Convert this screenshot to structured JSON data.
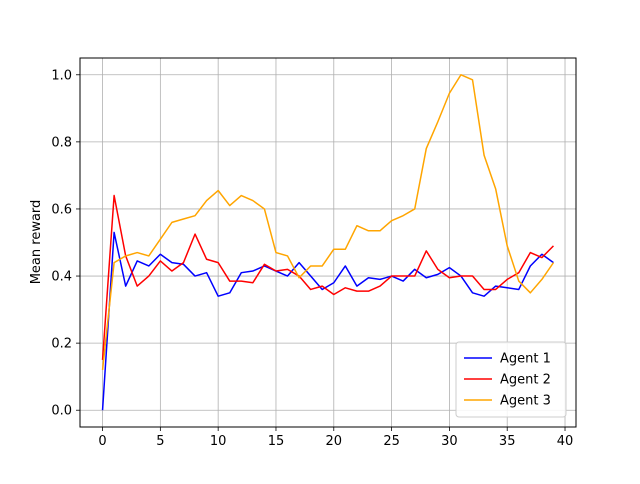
{
  "chart_data": {
    "type": "line",
    "title": "",
    "xlabel": "",
    "ylabel": "Mean reward",
    "xlim": [
      -1.95,
      40.95
    ],
    "ylim": [
      -0.05,
      1.05
    ],
    "xticks": [
      0,
      5,
      10,
      15,
      20,
      25,
      30,
      35,
      40
    ],
    "yticks": [
      0.0,
      0.2,
      0.4,
      0.6,
      0.8,
      1.0
    ],
    "xtick_labels": [
      "0",
      "5",
      "10",
      "15",
      "20",
      "25",
      "30",
      "35",
      "40"
    ],
    "ytick_labels": [
      "0.0",
      "0.2",
      "0.4",
      "0.6",
      "0.8",
      "1.0"
    ],
    "grid": true,
    "legend_position": "bottom-right",
    "x": [
      0,
      1,
      2,
      3,
      4,
      5,
      6,
      7,
      8,
      9,
      10,
      11,
      12,
      13,
      14,
      15,
      16,
      17,
      18,
      19,
      20,
      21,
      22,
      23,
      24,
      25,
      26,
      27,
      28,
      29,
      30,
      31,
      32,
      33,
      34,
      35,
      36,
      37,
      38,
      39
    ],
    "series": [
      {
        "name": "Agent 1",
        "color": "#0000ff",
        "values": [
          0.0,
          0.53,
          0.37,
          0.445,
          0.43,
          0.465,
          0.44,
          0.435,
          0.4,
          0.41,
          0.34,
          0.35,
          0.41,
          0.415,
          0.43,
          0.415,
          0.4,
          0.44,
          0.4,
          0.36,
          0.38,
          0.43,
          0.37,
          0.395,
          0.39,
          0.4,
          0.385,
          0.42,
          0.395,
          0.405,
          0.425,
          0.4,
          0.35,
          0.34,
          0.37,
          0.365,
          0.36,
          0.43,
          0.465,
          0.44
        ]
      },
      {
        "name": "Agent 2",
        "color": "#ff0000",
        "values": [
          0.15,
          0.64,
          0.46,
          0.37,
          0.4,
          0.445,
          0.415,
          0.44,
          0.525,
          0.45,
          0.44,
          0.385,
          0.385,
          0.38,
          0.435,
          0.415,
          0.42,
          0.4,
          0.36,
          0.37,
          0.345,
          0.365,
          0.355,
          0.355,
          0.37,
          0.4,
          0.4,
          0.4,
          0.475,
          0.42,
          0.395,
          0.4,
          0.4,
          0.36,
          0.36,
          0.39,
          0.41,
          0.47,
          0.455,
          0.49
        ]
      },
      {
        "name": "Agent 3",
        "color": "#ffa500",
        "values": [
          0.12,
          0.44,
          0.46,
          0.47,
          0.46,
          0.51,
          0.56,
          0.57,
          0.58,
          0.625,
          0.655,
          0.61,
          0.64,
          0.625,
          0.6,
          0.47,
          0.46,
          0.395,
          0.43,
          0.43,
          0.48,
          0.48,
          0.55,
          0.535,
          0.535,
          0.565,
          0.58,
          0.6,
          0.78,
          0.86,
          0.945,
          1.0,
          0.985,
          0.76,
          0.66,
          0.49,
          0.385,
          0.35,
          0.39,
          0.44
        ]
      }
    ]
  }
}
